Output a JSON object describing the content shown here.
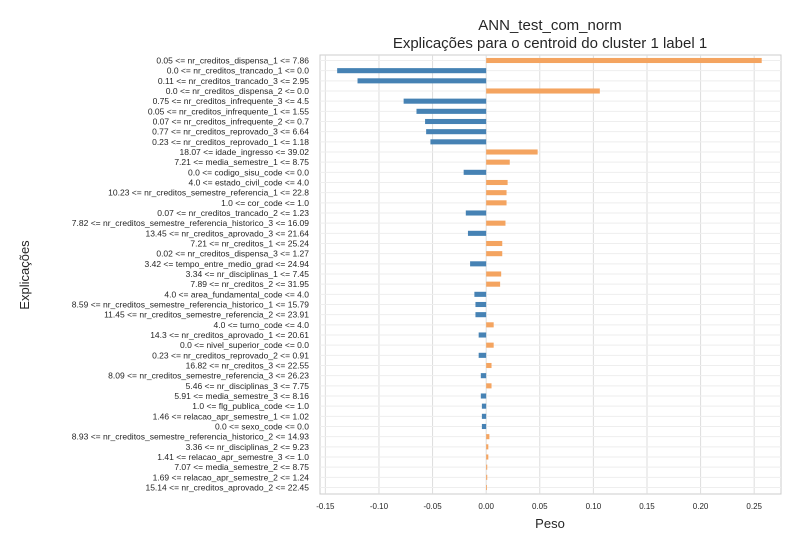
{
  "chart_data": {
    "type": "bar",
    "orientation": "horizontal",
    "title": "ANN_test_com_norm",
    "subtitle": "Explicações para o centroid do cluster 1 label 1",
    "xlabel": "Peso",
    "ylabel": "Explicações",
    "xlim": [
      -0.155,
      0.275
    ],
    "xticks": [
      -0.15,
      -0.1,
      -0.05,
      0.0,
      0.05,
      0.1,
      0.15,
      0.2,
      0.25
    ],
    "xtick_labels": [
      "-0.15",
      "-0.10",
      "-0.05",
      "0.00",
      "0.05",
      "0.10",
      "0.15",
      "0.20",
      "0.25"
    ],
    "grid": true,
    "colors": {
      "positive": "#f4a460",
      "negative": "#4682b4"
    },
    "categories": [
      "0.05 <= nr_creditos_dispensa_1 <= 7.86",
      "0.0 <= nr_creditos_trancado_1 <= 0.0",
      "0.11 <= nr_creditos_trancado_3 <= 2.95",
      "0.0 <= nr_creditos_dispensa_2 <= 0.0",
      "0.75 <= nr_creditos_infrequente_3 <= 4.5",
      "0.05 <= nr_creditos_infrequente_1 <= 1.55",
      "0.07 <= nr_creditos_infrequente_2 <= 0.7",
      "0.77 <= nr_creditos_reprovado_3 <= 6.64",
      "0.23 <= nr_creditos_reprovado_1 <= 1.18",
      "18.07 <= idade_ingresso <= 39.02",
      "7.21 <= media_semestre_1 <= 8.75",
      "0.0 <= codigo_sisu_code <= 0.0",
      "4.0 <= estado_civil_code <= 4.0",
      "10.23 <= nr_creditos_semestre_referencia_1 <= 22.8",
      "1.0 <= cor_code <= 1.0",
      "0.07 <= nr_creditos_trancado_2 <= 1.23",
      "7.82 <= nr_creditos_semestre_referencia_historico_3 <= 16.09",
      "13.45 <= nr_creditos_aprovado_3 <= 21.64",
      "7.21 <= nr_creditos_1 <= 25.24",
      "0.02 <= nr_creditos_dispensa_3 <= 1.27",
      "3.42 <= tempo_entre_medio_grad <= 24.94",
      "3.34 <= nr_disciplinas_1 <= 7.45",
      "7.89 <= nr_creditos_2 <= 31.95",
      "4.0 <= area_fundamental_code <= 4.0",
      "8.59 <= nr_creditos_semestre_referencia_historico_1 <= 15.79",
      "11.45 <= nr_creditos_semestre_referencia_2 <= 23.91",
      "4.0 <= turno_code <= 4.0",
      "14.3 <= nr_creditos_aprovado_1 <= 20.61",
      "0.0 <= nivel_superior_code <= 0.0",
      "0.23 <= nr_creditos_reprovado_2 <= 0.91",
      "16.82 <= nr_creditos_3 <= 22.55",
      "8.09 <= nr_creditos_semestre_referencia_3 <= 26.23",
      "5.46 <= nr_disciplinas_3 <= 7.75",
      "5.91 <= media_semestre_3 <= 8.16",
      "1.0 <= flg_publica_code <= 1.0",
      "1.46 <= relacao_apr_semestre_1 <= 1.02",
      "0.0 <= sexo_code <= 0.0",
      "8.93 <= nr_creditos_semestre_referencia_historico_2 <= 14.93",
      "3.36 <= nr_disciplinas_2 <= 9.23",
      "1.41 <= relacao_apr_semestre_3 <= 1.0",
      "7.07 <= media_semestre_2 <= 8.75",
      "1.69 <= relacao_apr_semestre_2 <= 1.24",
      "15.14 <= nr_creditos_aprovado_2 <= 22.45"
    ],
    "values": [
      0.257,
      -0.139,
      -0.12,
      0.106,
      -0.077,
      -0.065,
      -0.057,
      -0.056,
      -0.052,
      0.048,
      0.022,
      -0.021,
      0.02,
      0.019,
      0.019,
      -0.019,
      0.018,
      -0.017,
      0.015,
      0.015,
      -0.015,
      0.014,
      0.013,
      -0.011,
      -0.01,
      -0.01,
      0.007,
      -0.007,
      0.007,
      -0.007,
      0.005,
      -0.005,
      0.005,
      -0.005,
      -0.004,
      -0.004,
      -0.004,
      0.003,
      0.002,
      0.002,
      0.001,
      0.001,
      0.0005
    ]
  }
}
